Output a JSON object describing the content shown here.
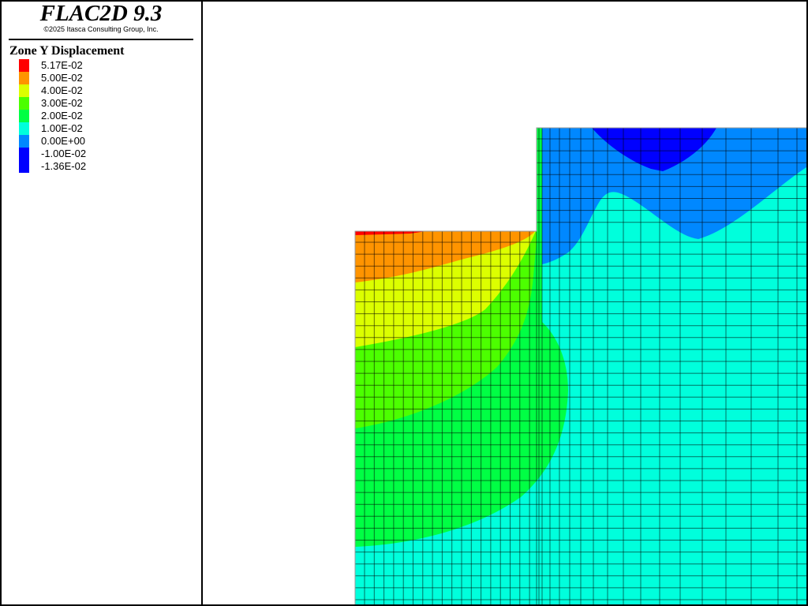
{
  "app": {
    "title": "FLAC2D 9.3",
    "copyright": "©2025 Itasca Consulting Group, Inc."
  },
  "legend": {
    "title": "Zone Y Displacement",
    "items": [
      {
        "label": "5.17E-02",
        "color": "#ff0000"
      },
      {
        "label": "5.00E-02",
        "color": "#ff9400"
      },
      {
        "label": "4.00E-02",
        "color": "#dcff00"
      },
      {
        "label": "3.00E-02",
        "color": "#4cff00"
      },
      {
        "label": "2.00E-02",
        "color": "#00ff44"
      },
      {
        "label": "1.00E-02",
        "color": "#00ffdc"
      },
      {
        "label": "0.00E+00",
        "color": "#0088ff"
      },
      {
        "label": "-1.00E-02",
        "color": "#0000ff"
      },
      {
        "label": "-1.36E-02",
        "color": "#0000ff"
      }
    ]
  },
  "plot": {
    "type": "contour",
    "grid_lines": true,
    "grid_color": "#000000"
  }
}
